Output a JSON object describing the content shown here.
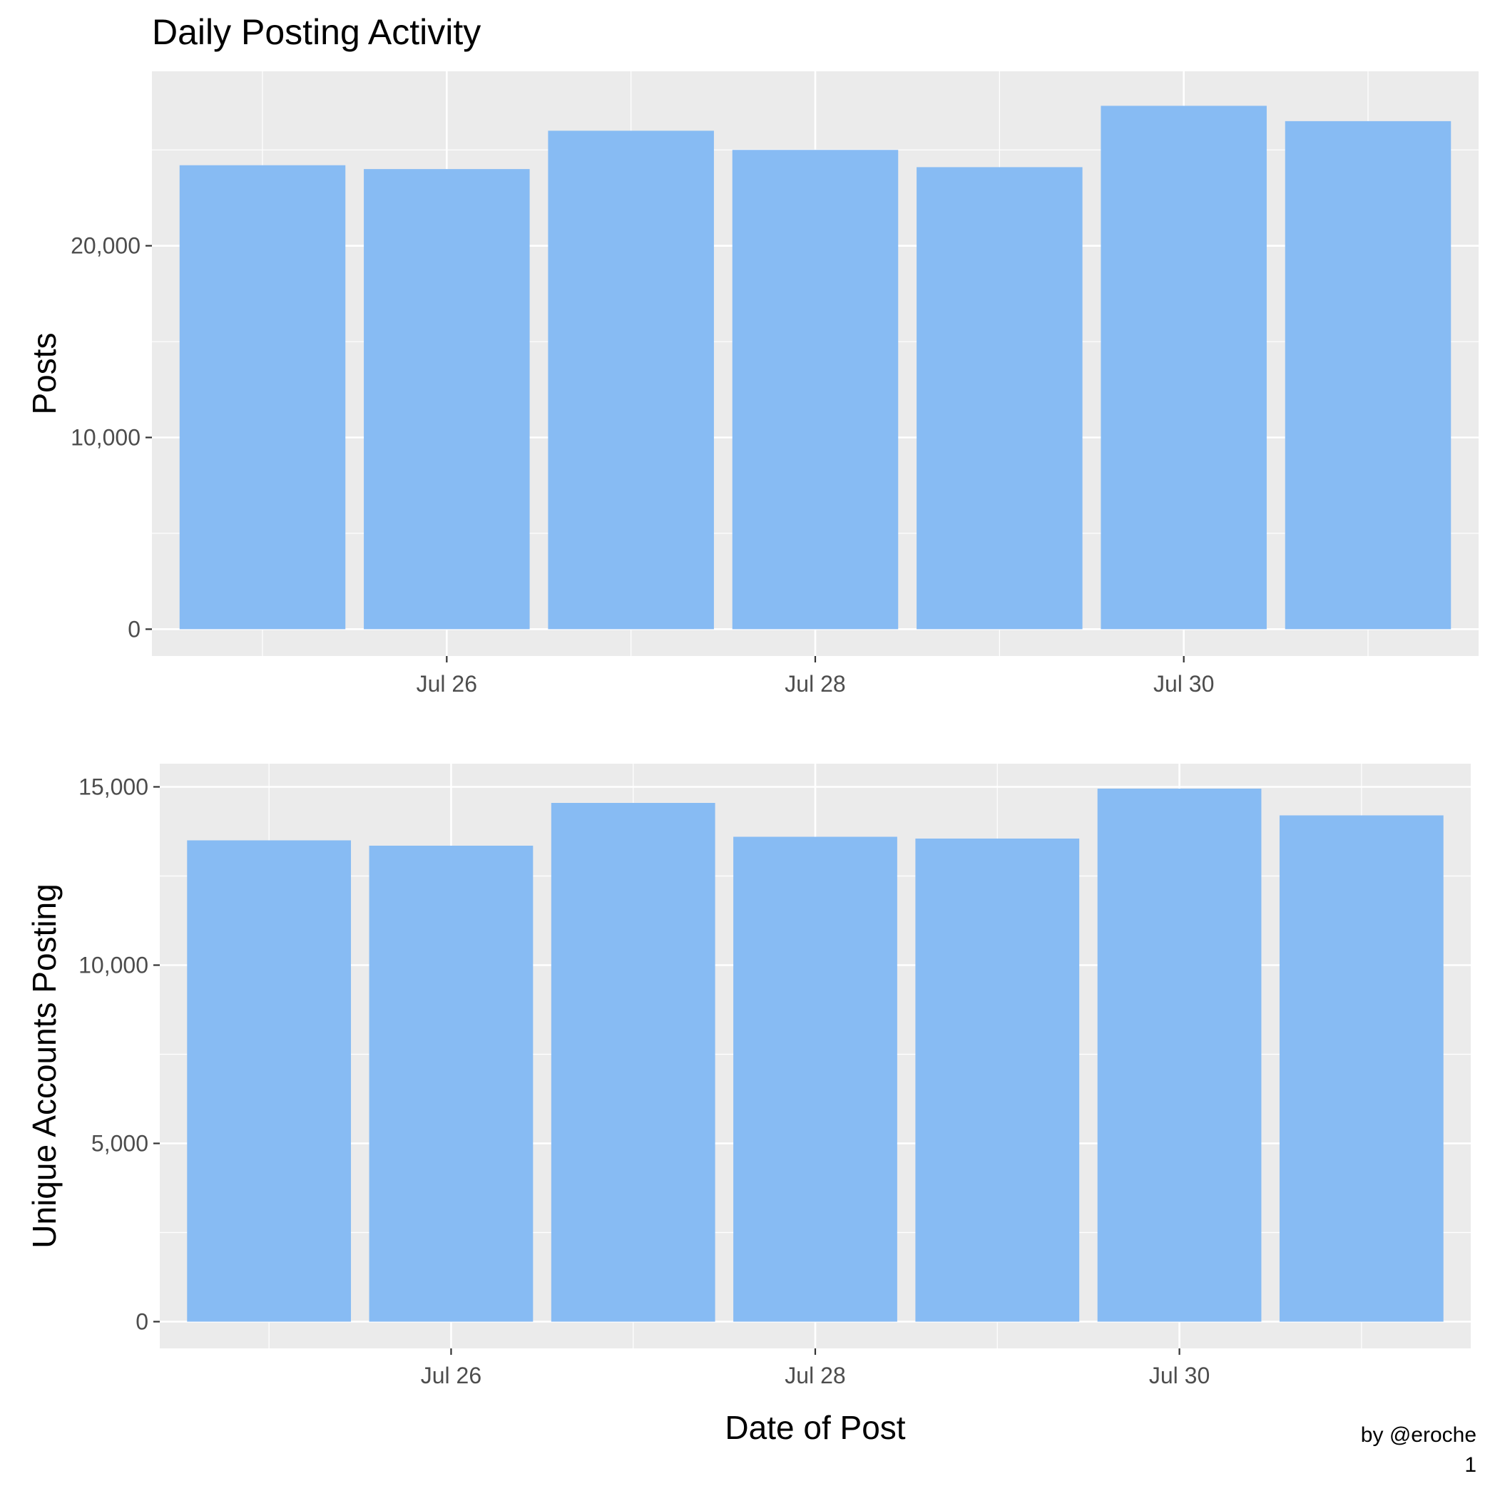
{
  "title": "Daily Posting Activity",
  "caption": "by @eroche",
  "page_number": "1",
  "colors": {
    "panel_background": "#ebebeb",
    "gridline": "#ffffff",
    "bar_fill": "#87bbf3",
    "tick_mark": "#333333",
    "tick_label": "#4d4d4d"
  },
  "chart_data": [
    {
      "type": "bar",
      "title": "Daily Posting Activity",
      "xlabel": "",
      "ylabel": "Posts",
      "x": [
        "Jul 25",
        "Jul 26",
        "Jul 27",
        "Jul 28",
        "Jul 29",
        "Jul 30",
        "Jul 31"
      ],
      "values": [
        24200,
        24000,
        26000,
        25000,
        24100,
        27300,
        26500
      ],
      "xlim": [
        "Jul 24.4",
        "Jul 31.6"
      ],
      "ylim": [
        -1400,
        29100
      ],
      "y_ticks": [
        0,
        10000,
        20000
      ],
      "y_tick_labels": [
        "0",
        "10,000",
        "20,000"
      ],
      "x_ticks": [
        "Jul 26",
        "Jul 28",
        "Jul 30"
      ],
      "x_tick_labels": [
        "Jul 26",
        "Jul 28",
        "Jul 30"
      ],
      "grid": true
    },
    {
      "type": "bar",
      "title": "",
      "xlabel": "Date of Post",
      "ylabel": "Unique Accounts Posting",
      "x": [
        "Jul 25",
        "Jul 26",
        "Jul 27",
        "Jul 28",
        "Jul 29",
        "Jul 30",
        "Jul 31"
      ],
      "values": [
        13500,
        13350,
        14550,
        13600,
        13550,
        14950,
        14200
      ],
      "xlim": [
        "Jul 24.4",
        "Jul 31.6"
      ],
      "ylim": [
        -750,
        15650
      ],
      "y_ticks": [
        0,
        5000,
        10000,
        15000
      ],
      "y_tick_labels": [
        "0",
        "5,000",
        "10,000",
        "15,000"
      ],
      "x_ticks": [
        "Jul 26",
        "Jul 28",
        "Jul 30"
      ],
      "x_tick_labels": [
        "Jul 26",
        "Jul 28",
        "Jul 30"
      ],
      "grid": true
    }
  ]
}
